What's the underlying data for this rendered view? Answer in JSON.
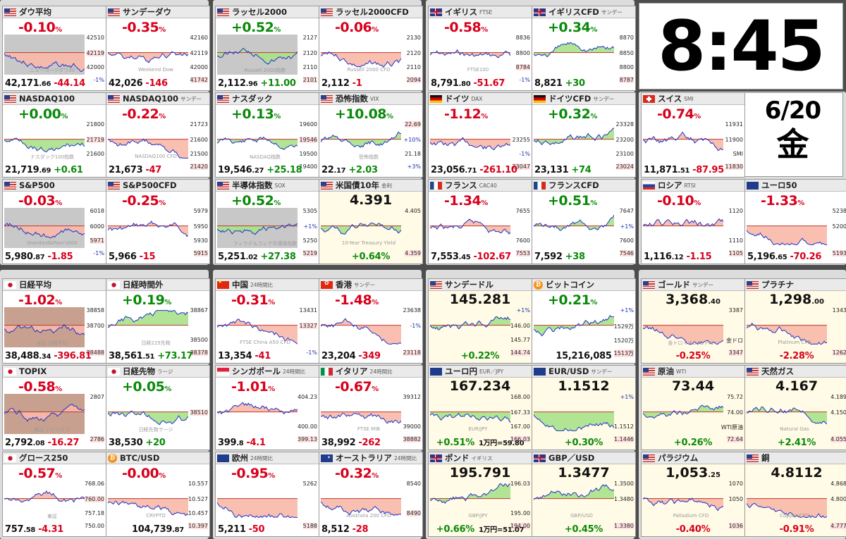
{
  "clock": {
    "time": "8:45",
    "date": "6/20",
    "weekday": "金"
  },
  "colors": {
    "up": "#0a8a0a",
    "down": "#d8001c",
    "line": "#1f32c8",
    "fill_up": "#a8e28a",
    "fill_down": "#f8b8a8"
  },
  "cards": [
    {
      "flag": "us",
      "title": "ダウ平均",
      "sub": "",
      "chg": "-0.10",
      "dir": "dn",
      "last_int": "42,171",
      "last_dec": ".66",
      "diff": "-44.14",
      "axis": [
        "42510",
        "42119",
        "42000",
        "-1%"
      ],
      "hl": 1,
      "wm": "ニューヨークダウ30",
      "trend": "dn",
      "bg": "#c8c8c8"
    },
    {
      "flag": "us",
      "title": "サンデーダウ",
      "sub": "",
      "chg": "-0.35",
      "dir": "dn",
      "last_int": "42,026",
      "last_dec": "",
      "diff": "-146",
      "axis": [
        "42160",
        "42119",
        "42000",
        "41742"
      ],
      "hl": 3,
      "wm": "Weekend Dow",
      "trend": "dn",
      "bg": ""
    },
    {
      "flag": "us",
      "title": "ラッセル2000",
      "sub": "",
      "chg": "+0.52",
      "dir": "up",
      "last_int": "2,112",
      "last_dec": ".96",
      "diff": "+11.00",
      "axis": [
        "2127",
        "2120",
        "2110",
        "2101"
      ],
      "hl": 3,
      "wm": "Russell 2000指数",
      "trend": "up",
      "bg": "#c8c8c8"
    },
    {
      "flag": "us",
      "title": "ラッセル2000CFD",
      "sub": "",
      "chg": "-0.06",
      "dir": "dn",
      "last_int": "2,112",
      "last_dec": "",
      "diff": "-1",
      "axis": [
        "2130",
        "2120",
        "2110",
        "2094"
      ],
      "hl": 3,
      "wm": "Russell 2000 CFD",
      "trend": "dn",
      "bg": ""
    },
    {
      "flag": "uk",
      "title": "イギリス",
      "sub": "FTSE",
      "chg": "-0.58",
      "dir": "dn",
      "last_int": "8,791",
      "last_dec": ".80",
      "diff": "-51.67",
      "axis": [
        "8836",
        "8800",
        "8784",
        "-1%"
      ],
      "hl": 2,
      "wm": "FTSE100",
      "trend": "dn",
      "bg": ""
    },
    {
      "flag": "uk",
      "title": "イギリスCFD",
      "sub": "サンデー",
      "chg": "+0.34",
      "dir": "up",
      "last_int": "8,821",
      "last_dec": "",
      "diff": "+30",
      "axis": [
        "8870",
        "8850",
        "8800",
        "8787"
      ],
      "hl": 3,
      "wm": "",
      "trend": "up",
      "bg": ""
    },
    {
      "flag": "us",
      "title": "NASDAQ100",
      "sub": "",
      "chg": "+0.00",
      "dir": "up",
      "last_int": "21,719",
      "last_dec": ".69",
      "diff": "+0.61",
      "axis": [
        "21800",
        "21719",
        "21600",
        ""
      ],
      "hl": 1,
      "wm": "ナスダック100指数",
      "trend": "flat",
      "bg": ""
    },
    {
      "flag": "us",
      "title": "NASDAQ100",
      "sub": "サンデー",
      "chg": "-0.22",
      "dir": "dn",
      "last_int": "21,673",
      "last_dec": "",
      "diff": "-47",
      "axis": [
        "21723",
        "21600",
        "21500",
        "21420"
      ],
      "hl": 3,
      "wm": "NASDAQ100 CFD",
      "trend": "dn",
      "bg": ""
    },
    {
      "flag": "us",
      "title": "ナスダック",
      "sub": "",
      "chg": "+0.13",
      "dir": "up",
      "last_int": "19,546",
      "last_dec": ".27",
      "diff": "+25.18",
      "axis": [
        "19600",
        "19546",
        "19500",
        "19400"
      ],
      "hl": 1,
      "wm": "NASDAQ指数",
      "trend": "flat",
      "bg": ""
    },
    {
      "flag": "us",
      "title": "恐怖指数",
      "sub": "VIX",
      "chg": "+10.08",
      "dir": "up",
      "last_int": "22",
      "last_dec": ".17",
      "diff": "+2.03",
      "axis": [
        "22.69",
        "+10%",
        "21.18",
        "+3%"
      ],
      "hl": 0,
      "wm": "恐怖指数",
      "trend": "up",
      "bg": ""
    },
    {
      "flag": "de",
      "title": "ドイツ",
      "sub": "DAX",
      "chg": "-1.12",
      "dir": "dn",
      "last_int": "23,056",
      "last_dec": ".71",
      "diff": "-261.10",
      "axis": [
        "",
        "23255",
        "-1%",
        "23047"
      ],
      "hl": 3,
      "wm": "",
      "trend": "dn",
      "bg": ""
    },
    {
      "flag": "de",
      "title": "ドイツCFD",
      "sub": "サンデー",
      "chg": "+0.32",
      "dir": "up",
      "last_int": "23,131",
      "last_dec": "",
      "diff": "+74",
      "axis": [
        "23328",
        "23200",
        "23100",
        "23024"
      ],
      "hl": 3,
      "wm": "",
      "trend": "up",
      "bg": ""
    },
    {
      "flag": "ch",
      "title": "スイス",
      "sub": "SMI",
      "chg": "-0.74",
      "dir": "dn",
      "last_int": "11,871",
      "last_dec": ".51",
      "diff": "-87.95",
      "axis": [
        "11931",
        "11900",
        "SMI",
        "11830"
      ],
      "hl": 3,
      "wm": "",
      "trend": "dn",
      "bg": ""
    },
    {
      "flag": "us",
      "title": "S&P500",
      "sub": "",
      "chg": "-0.03",
      "dir": "dn",
      "last_int": "5,980",
      "last_dec": ".87",
      "diff": "-1.85",
      "axis": [
        "6018",
        "6000",
        "5971",
        "-1%"
      ],
      "hl": 2,
      "wm": "Standard&Poor's500",
      "trend": "flat",
      "bg": "#c8c8c8"
    },
    {
      "flag": "us",
      "title": "S&P500CFD",
      "sub": "",
      "chg": "-0.25",
      "dir": "dn",
      "last_int": "5,966",
      "last_dec": "",
      "diff": "-15",
      "axis": [
        "5979",
        "5950",
        "5930",
        "5915"
      ],
      "hl": 3,
      "wm": "",
      "trend": "dn",
      "bg": ""
    },
    {
      "flag": "us",
      "title": "半導体指数",
      "sub": "SOX",
      "chg": "+0.52",
      "dir": "up",
      "last_int": "5,251",
      "last_dec": ".02",
      "diff": "+27.38",
      "axis": [
        "5305",
        "+1%",
        "5250",
        "5219"
      ],
      "hl": 3,
      "wm": "フィラデルフィア半導体指数",
      "trend": "up",
      "bg": "#c8c8c8"
    },
    {
      "flag": "us",
      "title": "米国債10年",
      "sub": "金利",
      "chg": "",
      "dir": "up",
      "last_int": "",
      "last_dec": "",
      "diff": "+0.64",
      "axis": [
        "4.405",
        "",
        "",
        "4.359"
      ],
      "hl": 3,
      "wm": "10-Year Treasury Yield",
      "trend": "flat",
      "bg": "",
      "price": "4.391",
      "pct": true
    },
    {
      "flag": "fr",
      "title": "フランス",
      "sub": "CAC40",
      "chg": "-1.34",
      "dir": "dn",
      "last_int": "7,553",
      "last_dec": ".45",
      "diff": "-102.67",
      "axis": [
        "7655",
        "",
        "7600",
        "7553"
      ],
      "hl": 3,
      "wm": "",
      "trend": "dn",
      "bg": ""
    },
    {
      "flag": "fr",
      "title": "フランスCFD",
      "sub": "",
      "chg": "+0.51",
      "dir": "up",
      "last_int": "7,592",
      "last_dec": "",
      "diff": "+38",
      "axis": [
        "7647",
        "+1%",
        "7600",
        "7546"
      ],
      "hl": 3,
      "wm": "",
      "trend": "up",
      "bg": ""
    },
    {
      "flag": "ru",
      "title": "ロシア",
      "sub": "RTSI",
      "chg": "-0.10",
      "dir": "dn",
      "last_int": "1,116",
      "last_dec": ".12",
      "diff": "-1.15",
      "axis": [
        "1120",
        "",
        "1110",
        "1105"
      ],
      "hl": 3,
      "wm": "",
      "trend": "dn",
      "bg": ""
    },
    {
      "flag": "eu",
      "title": "ユーロ50",
      "sub": "",
      "chg": "-1.33",
      "dir": "dn",
      "last_int": "5,196",
      "last_dec": ".65",
      "diff": "-70.26",
      "axis": [
        "5238",
        "5200",
        "",
        "5193"
      ],
      "hl": 3,
      "wm": "",
      "trend": "dn",
      "bg": ""
    },
    {
      "flag": "jp",
      "title": "日経平均",
      "sub": "",
      "chg": "-1.02",
      "dir": "dn",
      "last_int": "38,488",
      "last_dec": ".34",
      "diff": "-396.81",
      "axis": [
        "38858",
        "38700",
        "",
        "38488"
      ],
      "hl": 3,
      "wm": "東証 日経平均",
      "trend": "dn",
      "bg": "#c8a090"
    },
    {
      "flag": "jp",
      "title": "日経時間外",
      "sub": "",
      "chg": "+0.19",
      "dir": "up",
      "last_int": "38,561",
      "last_dec": ".51",
      "diff": "+73.17",
      "axis": [
        "38867",
        "",
        "38500",
        "38378"
      ],
      "hl": 3,
      "wm": "日経225先物",
      "trend": "up",
      "bg": ""
    },
    {
      "flag": "cn",
      "title": "中国",
      "sub": "24時間比",
      "chg": "-0.31",
      "dir": "dn",
      "last_int": "13,354",
      "last_dec": "",
      "diff": "-41",
      "axis": [
        "13431",
        "13327",
        "",
        "-1%"
      ],
      "hl": 1,
      "wm": "FTSE China A50 CFD",
      "trend": "dn",
      "bg": ""
    },
    {
      "flag": "hk",
      "title": "香港",
      "sub": "サンデー",
      "chg": "-1.48",
      "dir": "dn",
      "last_int": "23,204",
      "last_dec": "",
      "diff": "-349",
      "axis": [
        "23638",
        "-1%",
        "",
        "23118"
      ],
      "hl": 3,
      "wm": "",
      "trend": "dn",
      "bg": ""
    },
    {
      "flag": "us",
      "title": "サンデードル",
      "sub": "",
      "chg": "",
      "dir": "up",
      "last_int": "",
      "last_dec": "",
      "diff": "+0.22",
      "axis": [
        "+1%",
        "146.00",
        "145.77",
        "144.74"
      ],
      "hl": 3,
      "wm": "",
      "trend": "flat",
      "bg": "",
      "price": "145.281",
      "pct": true
    },
    {
      "flag": "btc",
      "title": "ビットコイン",
      "sub": "",
      "chg": "+0.21",
      "dir": "up",
      "last_int": "15,216,085",
      "last_dec": "",
      "diff": "",
      "axis": [
        "+1%",
        "1529万",
        "1520万",
        "1513万"
      ],
      "hl": 3,
      "wm": "",
      "trend": "flat",
      "bg": ""
    },
    {
      "flag": "us",
      "title": "ゴールド",
      "sub": "サンデー",
      "chg": "",
      "dir": "dn",
      "last_int": "",
      "last_dec": "",
      "diff": "-0.25",
      "axis": [
        "3387",
        "",
        "金ドロ",
        "3347"
      ],
      "hl": 3,
      "wm": "金トロイオンス/ドル",
      "trend": "dn",
      "bg": "",
      "price_int": "3,368",
      "price_dec": ".40",
      "pct": true
    },
    {
      "flag": "us",
      "title": "プラチナ",
      "sub": "",
      "chg": "",
      "dir": "dn",
      "last_int": "",
      "last_dec": "",
      "diff": "-2.28",
      "axis": [
        "1343",
        "",
        "",
        "1262"
      ],
      "hl": 3,
      "wm": "Platinum CFD",
      "trend": "dn",
      "bg": "",
      "price_int": "1,298",
      "price_dec": ".00",
      "pct": true
    },
    {
      "flag": "jp",
      "title": "TOPIX",
      "sub": "",
      "chg": "-0.58",
      "dir": "dn",
      "last_int": "2,792",
      "last_dec": ".08",
      "diff": "-16.27",
      "axis": [
        "2807",
        "",
        "",
        "2786"
      ],
      "hl": 3,
      "wm": "東証 トピックス",
      "trend": "dn",
      "bg": "#c8a090"
    },
    {
      "flag": "jp",
      "title": "日経先物",
      "sub": "ラージ",
      "chg": "+0.05",
      "dir": "up",
      "last_int": "38,530",
      "last_dec": "",
      "diff": "+20",
      "axis": [
        "",
        "38510",
        "",
        ""
      ],
      "hl": 1,
      "wm": "日経先物ラージ",
      "trend": "flat",
      "bg": ""
    },
    {
      "flag": "sg",
      "title": "シンガポール",
      "sub": "24時間比",
      "chg": "-1.01",
      "dir": "dn",
      "last_int": "399",
      "last_dec": ".8",
      "diff": "-4.1",
      "axis": [
        "404.23",
        "",
        "400.00",
        "399.13"
      ],
      "hl": 3,
      "wm": "",
      "trend": "dn",
      "bg": ""
    },
    {
      "flag": "it",
      "title": "イタリア",
      "sub": "24時間比",
      "chg": "-0.67",
      "dir": "dn",
      "last_int": "38,992",
      "last_dec": "",
      "diff": "-262",
      "axis": [
        "39312",
        "",
        "39000",
        "38882"
      ],
      "hl": 3,
      "wm": "FTSE MIB",
      "trend": "dn",
      "bg": ""
    },
    {
      "flag": "eu",
      "title": "ユーロ円",
      "sub": "EUR／JPY",
      "chg": "",
      "dir": "up",
      "last_int": "",
      "last_dec": "",
      "diff": "+0.51",
      "axis": [
        "168.00",
        "167.33",
        "167.00",
        "166.03"
      ],
      "hl": 3,
      "wm": "EUR/JPY",
      "trend": "flat",
      "bg": "",
      "price": "167.234",
      "pct": true,
      "extra": "1万円=59.80"
    },
    {
      "flag": "eu",
      "title": "EUR/USD",
      "sub": "サンデー",
      "chg": "",
      "dir": "up",
      "last_int": "",
      "last_dec": "",
      "diff": "+0.30",
      "axis": [
        "+1%",
        "",
        "1.1512",
        "1.1446"
      ],
      "hl": 3,
      "wm": "",
      "trend": "flat",
      "bg": "",
      "price": "1.1512",
      "pct": true
    },
    {
      "flag": "us",
      "title": "原油",
      "sub": "WTI",
      "chg": "",
      "dir": "up",
      "last_int": "",
      "last_dec": "",
      "diff": "+0.26",
      "axis": [
        "75.72",
        "74.00",
        "WTI原油",
        "72.64"
      ],
      "hl": 3,
      "wm": "",
      "trend": "up",
      "bg": "",
      "price": "73.44",
      "pct": true
    },
    {
      "flag": "us",
      "title": "天然ガス",
      "sub": "",
      "chg": "",
      "dir": "up",
      "last_int": "",
      "last_dec": "",
      "diff": "+2.41",
      "axis": [
        "4.189",
        "4.150",
        "",
        "4.055"
      ],
      "hl": 3,
      "wm": "Natural Gas",
      "trend": "up",
      "bg": "",
      "price": "4.167",
      "pct": true
    },
    {
      "flag": "jp",
      "title": "グロース250",
      "sub": "",
      "chg": "-0.57",
      "dir": "dn",
      "last_int": "757",
      "last_dec": ".58",
      "diff": "-4.31",
      "axis": [
        "768.06",
        "760.00",
        "757.18",
        "750.00"
      ],
      "hl": 1,
      "wm": "東証",
      "trend": "dn",
      "bg": ""
    },
    {
      "flag": "btc",
      "title": "BTC/USD",
      "sub": "",
      "chg": "-0.00",
      "dir": "dn",
      "last_int": "104,739",
      "last_dec": ".87",
      "diff": "",
      "axis": [
        "10.557",
        "10.527",
        "10.457",
        "10.397"
      ],
      "hl": 3,
      "wm": "CRYPTO",
      "trend": "dn",
      "bg": ""
    },
    {
      "flag": "eu",
      "title": "欧州",
      "sub": "24時間比",
      "chg": "-0.95",
      "dir": "dn",
      "last_int": "5,211",
      "last_dec": "",
      "diff": "-50",
      "axis": [
        "5262",
        "",
        "",
        "5188"
      ],
      "hl": 3,
      "wm": "",
      "trend": "dn",
      "bg": ""
    },
    {
      "flag": "au",
      "title": "オーストラリア",
      "sub": "24時間比",
      "chg": "-0.32",
      "dir": "dn",
      "last_int": "8,512",
      "last_dec": "",
      "diff": "-28",
      "axis": [
        "8540",
        "",
        "8490",
        ""
      ],
      "hl": 2,
      "wm": "Australia 200 CFD",
      "trend": "dn",
      "bg": ""
    },
    {
      "flag": "uk",
      "title": "ポンド",
      "sub": "イギリス",
      "chg": "",
      "dir": "up",
      "last_int": "",
      "last_dec": "",
      "diff": "+0.66",
      "axis": [
        "196.03",
        "",
        "195.00",
        "194.00"
      ],
      "hl": 3,
      "wm": "GBP/JPY",
      "trend": "up",
      "bg": "",
      "price": "195.791",
      "pct": true,
      "extra": "1万円=51.07"
    },
    {
      "flag": "uk",
      "title": "GBP／USD",
      "sub": "",
      "chg": "",
      "dir": "up",
      "last_int": "",
      "last_dec": "",
      "diff": "+0.45",
      "axis": [
        "1.3500",
        "1.3480",
        "",
        "1.3380"
      ],
      "hl": 3,
      "wm": "GBP/USD",
      "trend": "up",
      "bg": "",
      "price": "1.3477",
      "pct": true
    },
    {
      "flag": "us",
      "title": "パラジウム",
      "sub": "",
      "chg": "",
      "dir": "dn",
      "last_int": "",
      "last_dec": "",
      "diff": "-0.40",
      "axis": [
        "1070",
        "1050",
        "",
        "1036"
      ],
      "hl": 3,
      "wm": "Palladium CFD",
      "trend": "dn",
      "bg": "",
      "price_int": "1,053",
      "price_dec": ".25",
      "pct": true
    },
    {
      "flag": "us",
      "title": "銅",
      "sub": "",
      "chg": "",
      "dir": "dn",
      "last_int": "",
      "last_dec": "",
      "diff": "-0.91",
      "axis": [
        "4.868",
        "4.800",
        "",
        "4.777"
      ],
      "hl": 3,
      "wm": "Copper CFD",
      "trend": "dn",
      "bg": "",
      "price": "4.8112",
      "pct": true
    }
  ]
}
